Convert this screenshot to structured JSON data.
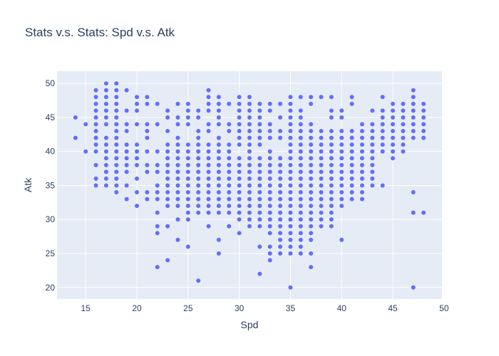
{
  "chart_data": {
    "type": "scatter",
    "title": "Stats v.s. Stats: Spd v.s. Atk",
    "xlabel": "Spd",
    "ylabel": "Atk",
    "xlim": [
      12.2,
      49.8
    ],
    "ylim": [
      18.3,
      51.8
    ],
    "x_ticks": [
      15,
      20,
      25,
      30,
      35,
      40,
      45,
      50
    ],
    "y_ticks": [
      20,
      25,
      30,
      35,
      40,
      45,
      50
    ],
    "grid": true,
    "colors": {
      "marker": "#636efa",
      "plot_bg": "#e5ecf6",
      "grid": "#ffffff",
      "text": "#2a3f5f"
    },
    "columns": [
      {
        "x": 14,
        "y": [
          42,
          45
        ]
      },
      {
        "x": 15,
        "y": [
          40,
          44
        ]
      },
      {
        "x": 16,
        "y": [
          35,
          36,
          38,
          40,
          41,
          42,
          43,
          44,
          45,
          46,
          47,
          48,
          49
        ]
      },
      {
        "x": 17,
        "y": [
          35,
          36,
          37,
          38,
          39,
          40,
          41,
          42,
          44,
          45,
          46,
          47,
          48,
          49,
          50
        ]
      },
      {
        "x": 18,
        "y": [
          34,
          35,
          36,
          37,
          38,
          39,
          40,
          41,
          42,
          43,
          44,
          45,
          46,
          47,
          48,
          49,
          50
        ]
      },
      {
        "x": 19,
        "y": [
          33,
          35,
          37,
          38,
          39,
          40,
          41,
          43,
          44,
          46,
          49
        ]
      },
      {
        "x": 20,
        "y": [
          32,
          34,
          36,
          38,
          39,
          40,
          41,
          44,
          46,
          47,
          48
        ]
      },
      {
        "x": 21,
        "y": [
          33,
          34,
          37,
          38,
          40,
          42,
          43,
          44,
          47,
          48
        ]
      },
      {
        "x": 22,
        "y": [
          23,
          28,
          29,
          31,
          33,
          34,
          35,
          37,
          38,
          40,
          44,
          47
        ]
      },
      {
        "x": 23,
        "y": [
          24,
          29,
          32,
          33,
          34,
          35,
          36,
          37,
          38,
          39,
          40,
          41,
          43,
          45,
          46
        ]
      },
      {
        "x": 24,
        "y": [
          27,
          30,
          32,
          33,
          34,
          35,
          36,
          37,
          38,
          39,
          40,
          41,
          42,
          44,
          45,
          47
        ]
      },
      {
        "x": 25,
        "y": [
          26,
          30,
          31,
          32,
          33,
          34,
          35,
          36,
          37,
          38,
          39,
          40,
          41,
          44,
          45,
          46,
          47
        ]
      },
      {
        "x": 26,
        "y": [
          21,
          31,
          32,
          33,
          34,
          35,
          36,
          37,
          38,
          39,
          40,
          41,
          42,
          43,
          45,
          46
        ]
      },
      {
        "x": 27,
        "y": [
          29,
          31,
          32,
          33,
          34,
          35,
          36,
          37,
          38,
          39,
          40,
          41,
          43,
          44,
          46,
          47,
          48,
          49
        ]
      },
      {
        "x": 28,
        "y": [
          25,
          27,
          31,
          32,
          33,
          34,
          35,
          36,
          37,
          38,
          39,
          40,
          41,
          42,
          44,
          45,
          46,
          47,
          48
        ]
      },
      {
        "x": 29,
        "y": [
          29,
          31,
          32,
          33,
          34,
          35,
          36,
          37,
          38,
          39,
          40,
          41,
          43,
          44,
          47
        ]
      },
      {
        "x": 30,
        "y": [
          28,
          30,
          31,
          32,
          33,
          34,
          35,
          36,
          37,
          38,
          39,
          41,
          42,
          43,
          44,
          45,
          46,
          47,
          48
        ]
      },
      {
        "x": 31,
        "y": [
          29,
          30,
          31,
          32,
          33,
          34,
          35,
          36,
          37,
          38,
          39,
          40,
          41,
          42,
          43,
          44,
          45,
          46,
          47,
          48
        ]
      },
      {
        "x": 32,
        "y": [
          22,
          26,
          29,
          30,
          31,
          32,
          33,
          34,
          35,
          36,
          37,
          38,
          39,
          41,
          42,
          43,
          44,
          45,
          46,
          47
        ]
      },
      {
        "x": 33,
        "y": [
          24,
          25,
          26,
          28,
          29,
          30,
          31,
          32,
          33,
          34,
          35,
          36,
          37,
          38,
          39,
          40,
          42,
          43,
          44,
          46,
          47
        ]
      },
      {
        "x": 34,
        "y": [
          25,
          26,
          27,
          28,
          29,
          30,
          31,
          32,
          33,
          34,
          35,
          36,
          37,
          38,
          39,
          42,
          43,
          45,
          47
        ]
      },
      {
        "x": 35,
        "y": [
          20,
          25,
          26,
          27,
          28,
          29,
          30,
          31,
          32,
          33,
          34,
          35,
          36,
          37,
          38,
          39,
          40,
          41,
          42,
          43,
          44,
          45,
          46,
          47,
          48
        ]
      },
      {
        "x": 36,
        "y": [
          25,
          26,
          27,
          28,
          29,
          30,
          31,
          32,
          33,
          34,
          35,
          36,
          37,
          38,
          39,
          40,
          41,
          42,
          43,
          44,
          45,
          46,
          48
        ]
      },
      {
        "x": 37,
        "y": [
          23,
          25,
          27,
          28,
          29,
          30,
          31,
          32,
          33,
          34,
          35,
          36,
          37,
          38,
          39,
          40,
          41,
          42,
          43,
          44,
          47,
          48
        ]
      },
      {
        "x": 38,
        "y": [
          29,
          30,
          31,
          32,
          33,
          34,
          35,
          36,
          37,
          38,
          39,
          40,
          41,
          42,
          43,
          48
        ]
      },
      {
        "x": 39,
        "y": [
          29,
          30,
          31,
          32,
          33,
          34,
          35,
          36,
          37,
          38,
          39,
          40,
          41,
          42,
          43,
          45,
          46,
          48
        ]
      },
      {
        "x": 40,
        "y": [
          27,
          32,
          33,
          34,
          35,
          36,
          37,
          38,
          39,
          40,
          41,
          42,
          43,
          45,
          46
        ]
      },
      {
        "x": 41,
        "y": [
          33,
          34,
          35,
          36,
          37,
          38,
          39,
          40,
          41,
          42,
          43,
          47,
          48
        ]
      },
      {
        "x": 42,
        "y": [
          33,
          34,
          35,
          36,
          37,
          38,
          39,
          40,
          41,
          42,
          43,
          44
        ]
      },
      {
        "x": 43,
        "y": [
          35,
          36,
          37,
          38,
          39,
          40,
          41,
          42,
          43,
          44,
          46
        ]
      },
      {
        "x": 44,
        "y": [
          35,
          40,
          41,
          42,
          43,
          44,
          45,
          46,
          48
        ]
      },
      {
        "x": 45,
        "y": [
          39,
          40,
          41,
          42,
          43,
          44,
          45,
          46,
          47
        ]
      },
      {
        "x": 46,
        "y": [
          40,
          41,
          42,
          43,
          44,
          45,
          46,
          47
        ]
      },
      {
        "x": 47,
        "y": [
          20,
          31,
          34,
          42,
          43,
          44,
          45,
          46,
          47,
          48,
          49
        ]
      },
      {
        "x": 48,
        "y": [
          31,
          42,
          43,
          44,
          45,
          46,
          47
        ]
      }
    ]
  }
}
